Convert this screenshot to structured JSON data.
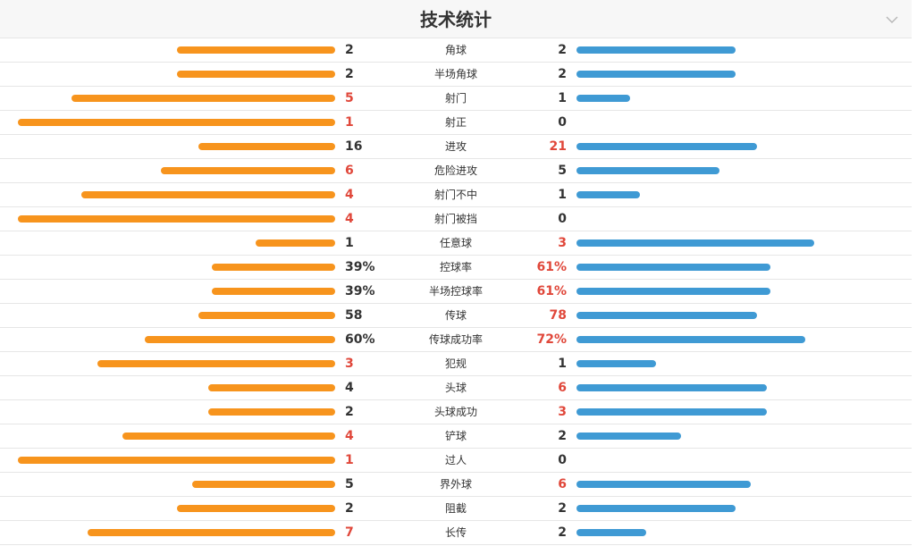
{
  "header": {
    "title": "技术统计",
    "collapse_icon": "chevron-down-icon"
  },
  "colors": {
    "home": "#f7941d",
    "away": "#3f9ad4",
    "leader_text": "#e0473a",
    "text": "#333333"
  },
  "rows": [
    {
      "label": "角球",
      "home": "2",
      "away": "2",
      "home_share": 0.5,
      "away_share": 0.5,
      "lead": ""
    },
    {
      "label": "半场角球",
      "home": "2",
      "away": "2",
      "home_share": 0.5,
      "away_share": 0.5,
      "lead": ""
    },
    {
      "label": "射门",
      "home": "5",
      "away": "1",
      "home_share": 0.83,
      "away_share": 0.17,
      "lead": "home"
    },
    {
      "label": "射正",
      "home": "1",
      "away": "0",
      "home_share": 1.0,
      "away_share": 0.0,
      "lead": "home"
    },
    {
      "label": "进攻",
      "home": "16",
      "away": "21",
      "home_share": 0.43,
      "away_share": 0.57,
      "lead": "away"
    },
    {
      "label": "危险进攻",
      "home": "6",
      "away": "5",
      "home_share": 0.55,
      "away_share": 0.45,
      "lead": "home"
    },
    {
      "label": "射门不中",
      "home": "4",
      "away": "1",
      "home_share": 0.8,
      "away_share": 0.2,
      "lead": "home"
    },
    {
      "label": "射门被挡",
      "home": "4",
      "away": "0",
      "home_share": 1.0,
      "away_share": 0.0,
      "lead": "home"
    },
    {
      "label": "任意球",
      "home": "1",
      "away": "3",
      "home_share": 0.25,
      "away_share": 0.75,
      "lead": "away"
    },
    {
      "label": "控球率",
      "home": "39%",
      "away": "61%",
      "home_share": 0.39,
      "away_share": 0.61,
      "lead": "away"
    },
    {
      "label": "半场控球率",
      "home": "39%",
      "away": "61%",
      "home_share": 0.39,
      "away_share": 0.61,
      "lead": "away"
    },
    {
      "label": "传球",
      "home": "58",
      "away": "78",
      "home_share": 0.43,
      "away_share": 0.57,
      "lead": "away"
    },
    {
      "label": "传球成功率",
      "home": "60%",
      "away": "72%",
      "home_share": 0.6,
      "away_share": 0.72,
      "lead": "away"
    },
    {
      "label": "犯规",
      "home": "3",
      "away": "1",
      "home_share": 0.75,
      "away_share": 0.25,
      "lead": "home"
    },
    {
      "label": "头球",
      "home": "4",
      "away": "6",
      "home_share": 0.4,
      "away_share": 0.6,
      "lead": "away"
    },
    {
      "label": "头球成功",
      "home": "2",
      "away": "3",
      "home_share": 0.4,
      "away_share": 0.6,
      "lead": "away"
    },
    {
      "label": "铲球",
      "home": "4",
      "away": "2",
      "home_share": 0.67,
      "away_share": 0.33,
      "lead": "home"
    },
    {
      "label": "过人",
      "home": "1",
      "away": "0",
      "home_share": 1.0,
      "away_share": 0.0,
      "lead": "home"
    },
    {
      "label": "界外球",
      "home": "5",
      "away": "6",
      "home_share": 0.45,
      "away_share": 0.55,
      "lead": "away"
    },
    {
      "label": "阻截",
      "home": "2",
      "away": "2",
      "home_share": 0.5,
      "away_share": 0.5,
      "lead": ""
    },
    {
      "label": "长传",
      "home": "7",
      "away": "2",
      "home_share": 0.78,
      "away_share": 0.22,
      "lead": "home"
    }
  ]
}
